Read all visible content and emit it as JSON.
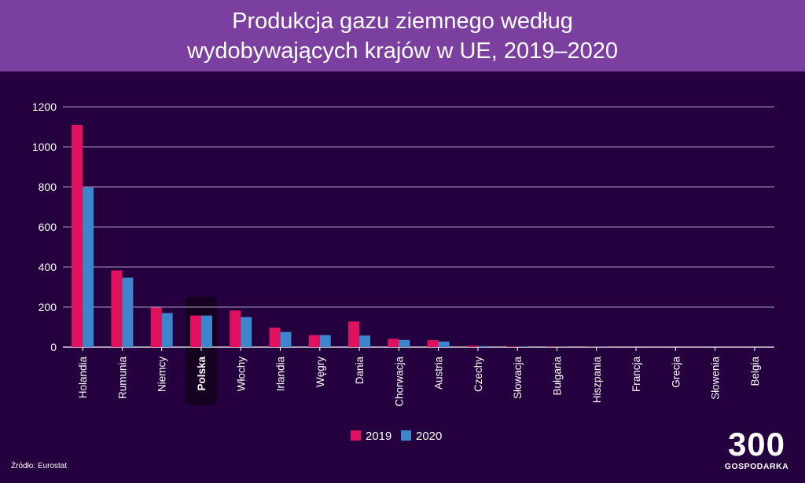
{
  "header": {
    "title_line1": "Produkcja gazu ziemnego według",
    "title_line2": "wydobywających krajów w UE, 2019–2020"
  },
  "footer": {
    "source": "Źródło: Eurostat",
    "logo_number": "300",
    "logo_text": "GOSPODARKA"
  },
  "colors": {
    "background": "#24003e",
    "header": "#7b3fa0",
    "series_2019": "#e0115f",
    "series_2020": "#3d86cc",
    "highlight": "#150022"
  },
  "chart_data": {
    "type": "bar",
    "title": "Produkcja gazu ziemnego według wydobywających krajów w UE, 2019–2020",
    "categories": [
      "Holandia",
      "Rumunia",
      "Niemcy",
      "Polska",
      "Włochy",
      "Irlandia",
      "Węgry",
      "Dania",
      "Chorwacja",
      "Austria",
      "Czechy",
      "Słowacja",
      "Bułgaria",
      "Hiszpania",
      "Francja",
      "Grecja",
      "Słowenia",
      "Belgia"
    ],
    "highlighted_category": "Polska",
    "series": [
      {
        "name": "2019",
        "values": [
          1110,
          383,
          198,
          158,
          183,
          97,
          60,
          128,
          42,
          35,
          7,
          3,
          1,
          1,
          0,
          0,
          0,
          0
        ]
      },
      {
        "name": "2020",
        "values": [
          797,
          347,
          170,
          158,
          150,
          76,
          60,
          58,
          36,
          28,
          5,
          3,
          1,
          1,
          0,
          0,
          0,
          0
        ]
      }
    ],
    "yticks": [
      0,
      200,
      400,
      600,
      800,
      1000,
      1200
    ],
    "ylim": [
      0,
      1200
    ],
    "xlabel": "",
    "ylabel": "",
    "grid": true,
    "legend_position": "bottom-center"
  }
}
